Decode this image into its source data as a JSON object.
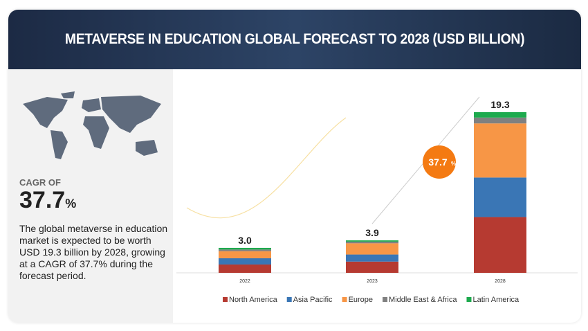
{
  "header": {
    "title": "METAVERSE IN EDUCATION GLOBAL FORECAST TO 2028 (USD BILLION)"
  },
  "left": {
    "cagr_label": "CAGR OF",
    "cagr_value": "37.7",
    "cagr_unit": "%",
    "description": "The global metaverse in education market is expected to be worth USD 19.3 billion by 2028, growing at a CAGR of 37.7% during the forecast period."
  },
  "chart_data": {
    "type": "bar",
    "stacked": true,
    "categories": [
      "2022",
      "2023",
      "2028"
    ],
    "totals": [
      "3.0",
      "3.9",
      "19.3"
    ],
    "series": [
      {
        "name": "North America",
        "color": "#b63a31",
        "values": [
          1.0,
          1.35,
          6.7
        ]
      },
      {
        "name": "Asia Pacific",
        "color": "#3a76b5",
        "values": [
          0.75,
          0.85,
          4.75
        ]
      },
      {
        "name": "Europe",
        "color": "#f79646",
        "values": [
          0.85,
          1.35,
          6.5
        ]
      },
      {
        "name": "Middle East & Africa",
        "color": "#808080",
        "values": [
          0.2,
          0.2,
          0.7
        ]
      },
      {
        "name": "Latin America",
        "color": "#1eaa4e",
        "values": [
          0.2,
          0.15,
          0.65
        ]
      }
    ],
    "cagr_badge": "37.7",
    "cagr_badge_unit": "%",
    "legend": "bottom",
    "ylim": [
      0,
      19.3
    ]
  }
}
